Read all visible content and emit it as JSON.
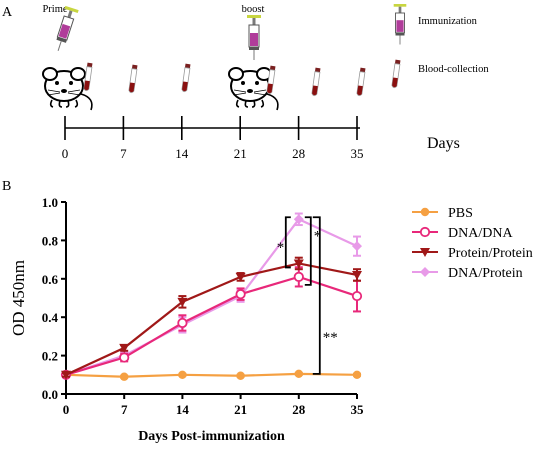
{
  "panel_a": {
    "label": "A",
    "prime_label": "Prime",
    "boost_label": "boost",
    "timeline_ticks": [
      "0",
      "7",
      "14",
      "21",
      "28",
      "35"
    ],
    "days_label": "Days",
    "legend": {
      "immunization": "Immunization",
      "blood_collection": "Blood-collection"
    },
    "icons": [
      "syringe-icon",
      "mouse-icon",
      "blood-tube-icon"
    ]
  },
  "panel_b": {
    "label": "B"
  },
  "colors": {
    "PBS": "#f5a042",
    "DNA/DNA": "#e8287a",
    "Protein/Protein": "#a01818",
    "DNA/Protein": "#e89ae8",
    "bracket": "#000000"
  },
  "chart_data": {
    "type": "line",
    "x": [
      0,
      7,
      14,
      21,
      28,
      35
    ],
    "xlabel": "Days Post-immunization",
    "ylabel": "OD 450nm",
    "xlim": [
      0,
      35
    ],
    "ylim": [
      0.0,
      1.0
    ],
    "xticks": [
      "0",
      "7",
      "14",
      "21",
      "28",
      "35"
    ],
    "yticks": [
      "0.0",
      "0.2",
      "0.4",
      "0.6",
      "0.8",
      "1.0"
    ],
    "grid": false,
    "legend_position": "right",
    "series": [
      {
        "name": "PBS",
        "values": [
          0.1,
          0.09,
          0.1,
          0.095,
          0.105,
          0.1
        ],
        "errors": [
          0.005,
          0.005,
          0.005,
          0.005,
          0.005,
          0.005
        ],
        "marker": "circle-filled"
      },
      {
        "name": "DNA/DNA",
        "values": [
          0.1,
          0.19,
          0.37,
          0.52,
          0.61,
          0.51
        ],
        "errors": [
          0.01,
          0.02,
          0.04,
          0.03,
          0.05,
          0.08
        ],
        "marker": "circle-open"
      },
      {
        "name": "Protein/Protein",
        "values": [
          0.1,
          0.24,
          0.48,
          0.61,
          0.68,
          0.62
        ],
        "errors": [
          0.01,
          0.015,
          0.03,
          0.02,
          0.03,
          0.03
        ],
        "marker": "triangle-down"
      },
      {
        "name": "DNA/Protein",
        "values": [
          0.1,
          0.2,
          0.36,
          0.51,
          0.91,
          0.77
        ],
        "errors": [
          0.01,
          0.02,
          0.04,
          0.03,
          0.03,
          0.05
        ],
        "marker": "diamond"
      }
    ],
    "annotations": [
      {
        "text": "*",
        "between": "DNA/Protein vs Protein/Protein",
        "x": 28
      },
      {
        "text": "*",
        "between": "DNA/Protein vs DNA/DNA",
        "x": 28
      },
      {
        "text": "**",
        "between": "DNA/Protein vs PBS",
        "x": 28
      }
    ]
  }
}
